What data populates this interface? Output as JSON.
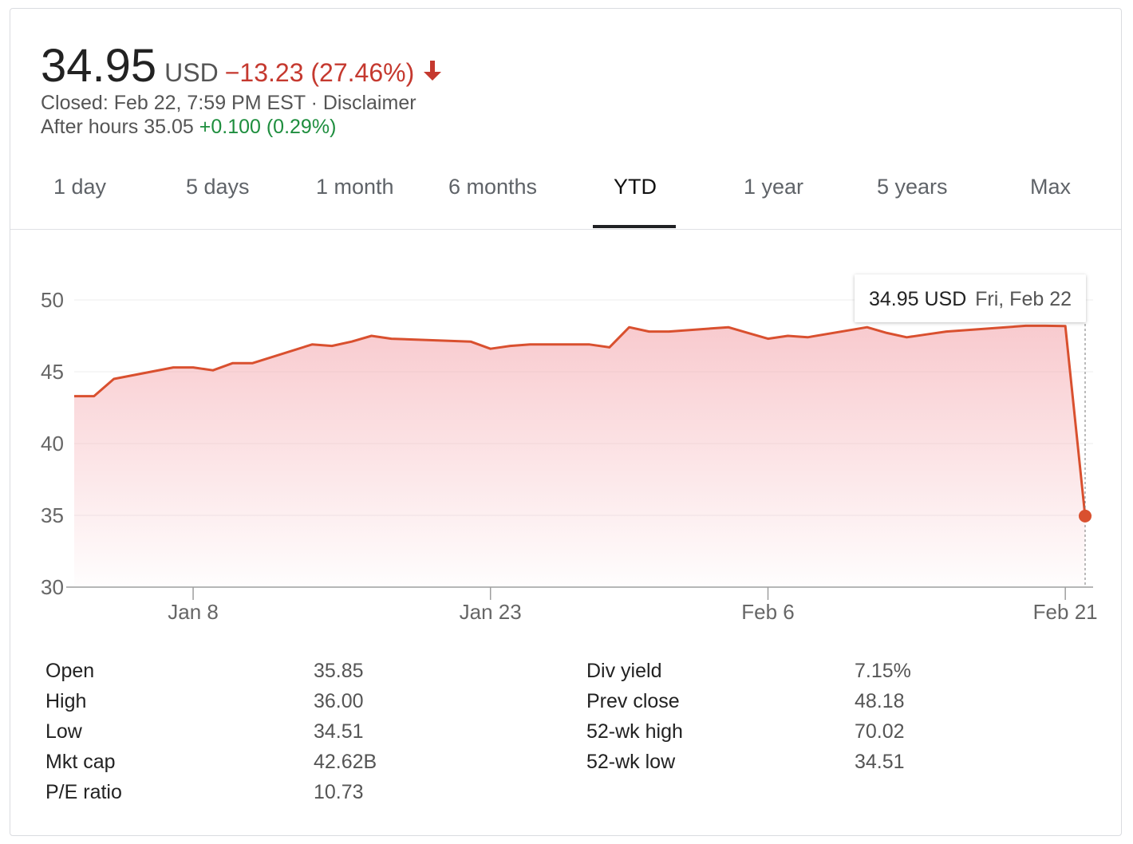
{
  "quote": {
    "price": "34.95",
    "currency": "USD",
    "change": "−13.23 (27.46%)",
    "closed_text": "Closed: Feb 22, 7:59 PM EST · Disclaimer",
    "after_hours_label": "After hours 35.05",
    "after_hours_change": "+0.100 (0.29%)",
    "down_color": "#c5392f",
    "up_color": "#1e8e3e"
  },
  "tabs": [
    {
      "label": "1 day"
    },
    {
      "label": "5 days"
    },
    {
      "label": "1 month"
    },
    {
      "label": "6 months"
    },
    {
      "label": "YTD",
      "active": true
    },
    {
      "label": "1 year"
    },
    {
      "label": "5 years"
    },
    {
      "label": "Max"
    }
  ],
  "chart_data": {
    "type": "area",
    "x_start": "2019-01-02",
    "x_end": "2019-02-22",
    "ylim": [
      30,
      50
    ],
    "yticks": [
      30,
      35,
      40,
      45,
      50
    ],
    "xticks": [
      {
        "label": "Jan 8",
        "date": "2019-01-08"
      },
      {
        "label": "Jan 23",
        "date": "2019-01-23"
      },
      {
        "label": "Feb 6",
        "date": "2019-02-06"
      },
      {
        "label": "Feb 21",
        "date": "2019-02-21"
      }
    ],
    "line_color": "#d9502f",
    "fill_color": "#f4a7ae",
    "points": [
      {
        "x": "2019-01-02",
        "y": 43.3
      },
      {
        "x": "2019-01-03",
        "y": 43.3
      },
      {
        "x": "2019-01-04",
        "y": 44.5
      },
      {
        "x": "2019-01-07",
        "y": 45.3
      },
      {
        "x": "2019-01-08",
        "y": 45.3
      },
      {
        "x": "2019-01-09",
        "y": 45.1
      },
      {
        "x": "2019-01-10",
        "y": 45.6
      },
      {
        "x": "2019-01-11",
        "y": 45.6
      },
      {
        "x": "2019-01-14",
        "y": 46.9
      },
      {
        "x": "2019-01-15",
        "y": 46.8
      },
      {
        "x": "2019-01-16",
        "y": 47.1
      },
      {
        "x": "2019-01-17",
        "y": 47.5
      },
      {
        "x": "2019-01-18",
        "y": 47.3
      },
      {
        "x": "2019-01-22",
        "y": 47.1
      },
      {
        "x": "2019-01-23",
        "y": 46.6
      },
      {
        "x": "2019-01-24",
        "y": 46.8
      },
      {
        "x": "2019-01-25",
        "y": 46.9
      },
      {
        "x": "2019-01-28",
        "y": 46.9
      },
      {
        "x": "2019-01-29",
        "y": 46.7
      },
      {
        "x": "2019-01-30",
        "y": 48.1
      },
      {
        "x": "2019-01-31",
        "y": 47.8
      },
      {
        "x": "2019-02-01",
        "y": 47.8
      },
      {
        "x": "2019-02-04",
        "y": 48.1
      },
      {
        "x": "2019-02-05",
        "y": 47.7
      },
      {
        "x": "2019-02-06",
        "y": 47.3
      },
      {
        "x": "2019-02-07",
        "y": 47.5
      },
      {
        "x": "2019-02-08",
        "y": 47.4
      },
      {
        "x": "2019-02-11",
        "y": 48.1
      },
      {
        "x": "2019-02-12",
        "y": 47.7
      },
      {
        "x": "2019-02-13",
        "y": 47.4
      },
      {
        "x": "2019-02-14",
        "y": 47.6
      },
      {
        "x": "2019-02-15",
        "y": 47.8
      },
      {
        "x": "2019-02-19",
        "y": 48.2
      },
      {
        "x": "2019-02-20",
        "y": 48.2
      },
      {
        "x": "2019-02-21",
        "y": 48.18
      },
      {
        "x": "2019-02-22",
        "y": 34.95
      }
    ],
    "tooltip": {
      "value": "34.95 USD",
      "date": "Fri, Feb 22"
    }
  },
  "stats": {
    "left": [
      {
        "label": "Open",
        "value": "35.85"
      },
      {
        "label": "High",
        "value": "36.00"
      },
      {
        "label": "Low",
        "value": "34.51"
      },
      {
        "label": "Mkt cap",
        "value": "42.62B"
      },
      {
        "label": "P/E ratio",
        "value": "10.73"
      }
    ],
    "right": [
      {
        "label": "Div yield",
        "value": "7.15%"
      },
      {
        "label": "Prev close",
        "value": "48.18"
      },
      {
        "label": "52-wk high",
        "value": "70.02"
      },
      {
        "label": "52-wk low",
        "value": "34.51"
      }
    ]
  }
}
